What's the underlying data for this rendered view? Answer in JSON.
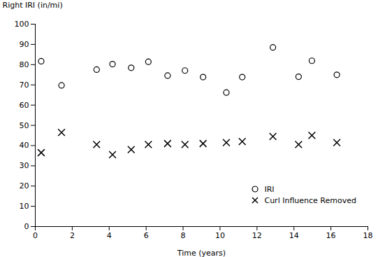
{
  "chart_data": {
    "type": "scatter",
    "xlabel": "Time (years)",
    "ylabel": "Right IRI (in/mi)",
    "x": [
      0.32,
      1.42,
      3.32,
      4.18,
      5.19,
      6.12,
      7.16,
      8.1,
      9.08,
      10.34,
      11.2,
      12.86,
      14.25,
      14.97,
      16.32
    ],
    "series": [
      {
        "name": "IRI",
        "color": "#000000",
        "marker": "o",
        "values": [
          81.69,
          69.74,
          77.53,
          80.24,
          78.45,
          81.44,
          74.59,
          77.08,
          73.86,
          66.19,
          73.84,
          88.52,
          74.03,
          81.92,
          74.99
        ]
      },
      {
        "name": "Curl Influence Removed",
        "color": "#000000",
        "marker": "x",
        "values": [
          36.5,
          46.5,
          40.5,
          35.5,
          38.0,
          40.5,
          41.0,
          40.5,
          41.0,
          41.5,
          42.0,
          44.5,
          40.5,
          45.0,
          41.5
        ]
      }
    ],
    "xlim": [
      0,
      18
    ],
    "ylim": [
      0,
      100
    ],
    "xticks": [
      0,
      2,
      4,
      6,
      8,
      10,
      12,
      14,
      16,
      18
    ],
    "yticks": [
      0,
      10,
      20,
      30,
      40,
      50,
      60,
      70,
      80,
      90,
      100
    ],
    "grid": false,
    "legend": "lower right"
  }
}
